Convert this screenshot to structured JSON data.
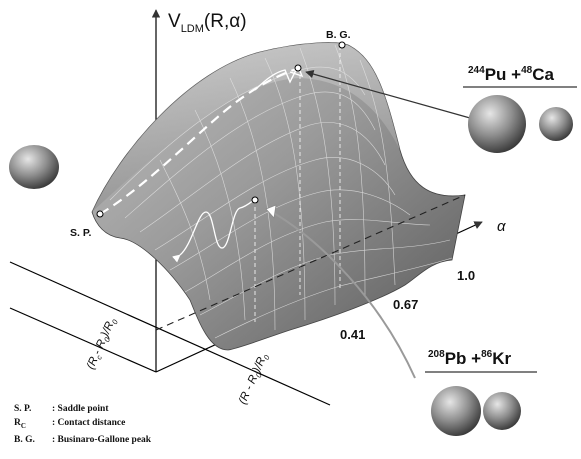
{
  "axis_labels": {
    "v_prefix": "V",
    "v_sub": "LDM",
    "v_suffix": "(R,α)",
    "alpha": "α",
    "rc_axis_open": "(R",
    "rc_axis_sub_c": "c",
    "rc_axis_mid": "- R",
    "rc_axis_sub_0": "0",
    "rc_axis_close": ")/R",
    "rc_axis_sub_0b": "0",
    "r_axis_open": "(R - R",
    "r_axis_sub_0": "0",
    "r_axis_close": ")/R",
    "r_axis_sub_0b": "0"
  },
  "alpha_ticks": [
    "1.0",
    "0.67",
    "0.41"
  ],
  "points": {
    "saddle": "S. P.",
    "bg_peak": "B. G."
  },
  "reactions": {
    "heavy": {
      "mass1": "244",
      "elem1": "Pu",
      "plus": " +",
      "mass2": "48",
      "elem2": "Ca"
    },
    "light": {
      "mass1": "208",
      "elem1": "Pb",
      "plus": " +",
      "mass2": "86",
      "elem2": "Kr"
    }
  },
  "legend": [
    {
      "key": "S. P.",
      "sep": ":",
      "text": "Saddle point"
    },
    {
      "key": "R",
      "sub": "C",
      "sep": ":",
      "text": "Contact distance"
    },
    {
      "key": "B. G.",
      "sep": ":",
      "text": "Businaro-Gallone peak"
    }
  ],
  "colors": {
    "surface_light": "#b4b4b4",
    "surface_dark": "#5a5a5a",
    "sphere_light": "#cfcfcf",
    "sphere_dark": "#3a3a3a",
    "path": "#ffffff",
    "axis": "#000000"
  }
}
